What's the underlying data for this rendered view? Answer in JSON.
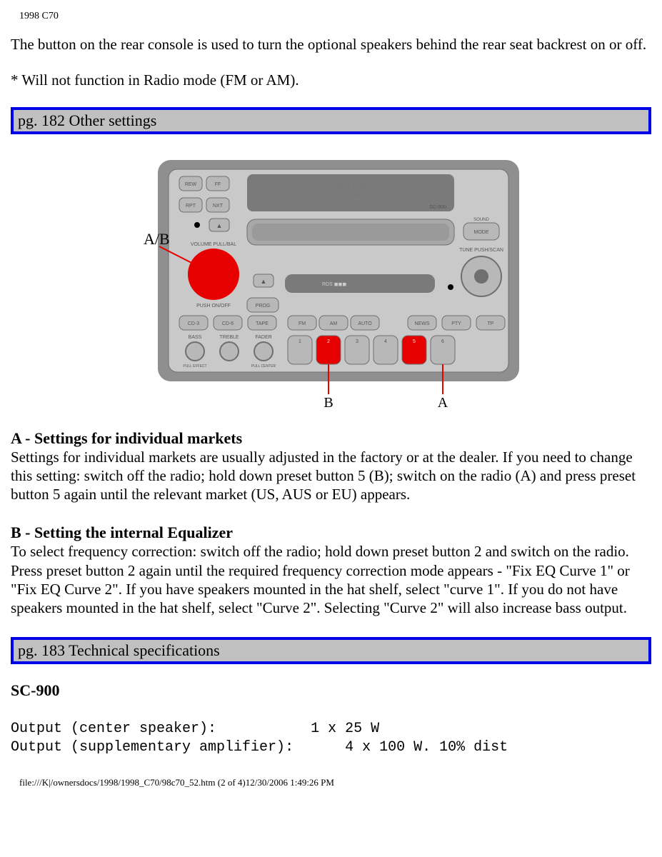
{
  "header": {
    "title": "1998 C70"
  },
  "intro": {
    "p1": "The button on the rear console is used to turn the optional speakers behind the rear seat backrest on or off.",
    "p2": "* Will not function in Radio mode (FM or AM)."
  },
  "banner1": {
    "text": "pg. 182 Other settings"
  },
  "radio": {
    "ab_label": "A/B",
    "b_label": "B",
    "a_label": "A",
    "colors": {
      "body": "#8f8f8f",
      "panel": "#c9c9c9",
      "slot": "#7a7a7a",
      "btn_fill": "#b8b8b8",
      "btn_stroke": "#6f6f6f",
      "display": "#a8a8a8",
      "black_dot": "#000000",
      "highlight": "#e60000",
      "label_text": "#000000",
      "small_text": "#555555",
      "brand_text": "#777777"
    },
    "top_buttons_left": [
      "REW",
      "FF",
      "RPT",
      "NXT"
    ],
    "eject1": "▲",
    "eject2": "▲",
    "prog": "PROG",
    "sound_mode": [
      "SOUND",
      "MODE"
    ],
    "volume_labels": [
      "VOLUME  PULL/BAL",
      "PUSH  ON/OFF"
    ],
    "tune_label": "TUNE  PUSH/SCAN",
    "mid_row": [
      "CD-3",
      "CD-6",
      "TAPE",
      "FM",
      "AM",
      "AUTO",
      "NEWS",
      "PTY",
      "TP"
    ],
    "knob_row": [
      "BASS",
      "TREBLE",
      "FADER"
    ],
    "knob_under": [
      "PULL EFFECT",
      "",
      "PULL CENTER"
    ],
    "presets": [
      "1",
      "2",
      "3",
      "4",
      "5",
      "6"
    ],
    "brand": "VOLVO",
    "brand_sub": "3 DISC CHANGER",
    "model": "SC-900",
    "rds": "RDS ◼◼◼"
  },
  "sectionA": {
    "heading": "A - Settings for individual markets",
    "body": "Settings for individual markets are usually adjusted in the factory or at the dealer. If you need to change this setting: switch off the radio; hold down preset button 5 (B); switch on the radio (A) and press preset button 5 again until the relevant market (US, AUS or EU) appears."
  },
  "sectionB": {
    "heading": "B - Setting the internal Equalizer",
    "body": "To select frequency correction: switch off the radio; hold down preset button 2 and switch on the radio. Press preset button 2 again until the required frequency correction mode appears - \"Fix EQ Curve 1\" or \"Fix EQ Curve 2\". If you have speakers mounted in the hat shelf, select \"curve 1\". If you do not have speakers mounted in the hat shelf, select \"Curve 2\". Selecting \"Curve 2\" will also increase bass output."
  },
  "banner2": {
    "text": "pg. 183 Technical specifications"
  },
  "specs": {
    "model": "SC-900",
    "lines": "Output (center speaker):           1 x 25 W\nOutput (supplementary amplifier):      4 x 100 W. 10% dist"
  },
  "footer": {
    "path": "file:///K|/ownersdocs/1998/1998_C70/98c70_52.htm (2 of 4)12/30/2006 1:49:26 PM"
  }
}
